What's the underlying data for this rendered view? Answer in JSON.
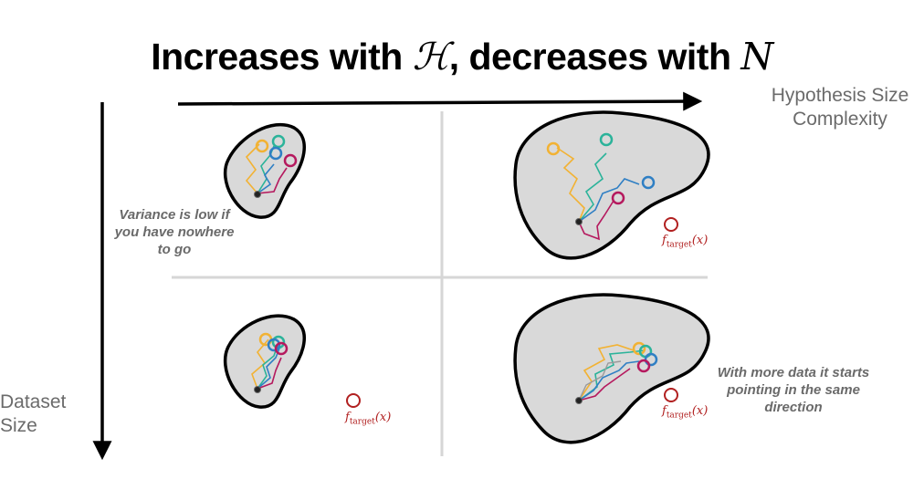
{
  "title": {
    "prefix": "Increases with ",
    "symbol_h": "ℋ",
    "middle": ", decreases with ",
    "symbol_n": "N"
  },
  "axes": {
    "x_label": "Hypothesis Size Complexity",
    "y_label": "Dataset Size"
  },
  "notes": {
    "variance": "Variance is low if you have nowhere to go",
    "more_data": "With more data it starts pointing  in the same direction"
  },
  "target": {
    "f": "f",
    "sub": "target",
    "arg": "(x)"
  },
  "colors": {
    "yellow": "#f2b233",
    "teal": "#2bb39a",
    "blue": "#2f7fc4",
    "magenta": "#b5195e",
    "target_red": "#b12020",
    "blob_fill": "#d9d9d9",
    "divider": "#d6d6d6"
  }
}
